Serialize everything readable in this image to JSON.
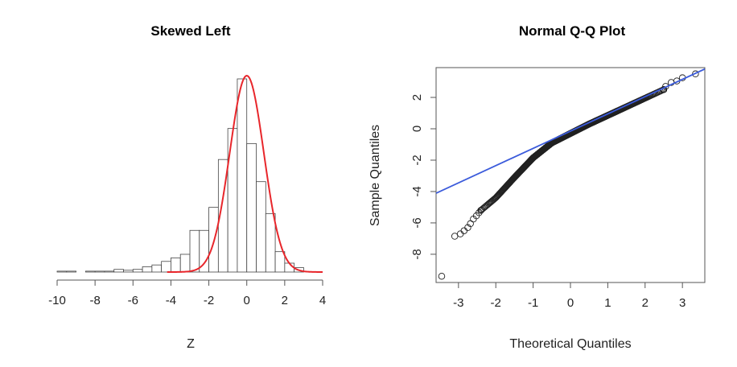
{
  "chart_data": [
    {
      "type": "histogram",
      "title": "Skewed Left",
      "xlabel": "Z",
      "ylabel": "",
      "xlim": [
        -10,
        4
      ],
      "x_ticks": [
        -10,
        -8,
        -6,
        -4,
        -2,
        0,
        2,
        4
      ],
      "bin_width": 0.5,
      "bins": [
        {
          "x0": -10.0,
          "x1": -9.5,
          "count": 1
        },
        {
          "x0": -9.5,
          "x1": -9.0,
          "count": 1
        },
        {
          "x0": -9.0,
          "x1": -8.5,
          "count": 0
        },
        {
          "x0": -8.5,
          "x1": -8.0,
          "count": 1
        },
        {
          "x0": -8.0,
          "x1": -7.5,
          "count": 1
        },
        {
          "x0": -7.5,
          "x1": -7.0,
          "count": 1
        },
        {
          "x0": -7.0,
          "x1": -6.5,
          "count": 3
        },
        {
          "x0": -6.5,
          "x1": -6.0,
          "count": 2
        },
        {
          "x0": -6.0,
          "x1": -5.5,
          "count": 3
        },
        {
          "x0": -5.5,
          "x1": -5.0,
          "count": 6
        },
        {
          "x0": -5.0,
          "x1": -4.5,
          "count": 8
        },
        {
          "x0": -4.5,
          "x1": -4.0,
          "count": 12
        },
        {
          "x0": -4.0,
          "x1": -3.5,
          "count": 16
        },
        {
          "x0": -3.5,
          "x1": -3.0,
          "count": 20
        },
        {
          "x0": -3.0,
          "x1": -2.5,
          "count": 47
        },
        {
          "x0": -2.5,
          "x1": -2.0,
          "count": 47
        },
        {
          "x0": -2.0,
          "x1": -1.5,
          "count": 73
        },
        {
          "x0": -1.5,
          "x1": -1.0,
          "count": 127
        },
        {
          "x0": -1.0,
          "x1": -0.5,
          "count": 162
        },
        {
          "x0": -0.5,
          "x1": 0.0,
          "count": 218
        },
        {
          "x0": 0.0,
          "x1": 0.5,
          "count": 145
        },
        {
          "x0": 0.5,
          "x1": 1.0,
          "count": 102
        },
        {
          "x0": 1.0,
          "x1": 1.5,
          "count": 66
        },
        {
          "x0": 1.5,
          "x1": 2.0,
          "count": 23
        },
        {
          "x0": 2.0,
          "x1": 2.5,
          "count": 10
        },
        {
          "x0": 2.5,
          "x1": 3.0,
          "count": 5
        }
      ],
      "count_max": 218,
      "overlay_curve": {
        "type": "normal_density",
        "mean": 0,
        "sd": 0.9,
        "color": "#e8262b"
      },
      "bar_fill": "#ffffff",
      "bar_stroke": "#444444"
    },
    {
      "type": "scatter",
      "title": "Normal Q-Q Plot",
      "xlabel": "Theoretical Quantiles",
      "ylabel": "Sample Quantiles",
      "xlim": [
        -3.6,
        3.6
      ],
      "ylim": [
        -9.8,
        3.9
      ],
      "x_ticks": [
        -3,
        -2,
        -1,
        0,
        1,
        2,
        3
      ],
      "y_ticks": [
        -8,
        -6,
        -4,
        -2,
        0,
        2
      ],
      "points": [
        [
          -3.45,
          -9.4
        ],
        [
          -3.1,
          -6.85
        ],
        [
          -2.95,
          -6.7
        ],
        [
          -2.85,
          -6.5
        ],
        [
          -2.75,
          -6.3
        ],
        [
          -2.68,
          -6.05
        ],
        [
          -2.6,
          -5.75
        ],
        [
          -2.52,
          -5.55
        ],
        [
          -2.45,
          -5.35
        ],
        [
          2.55,
          2.7
        ],
        [
          2.7,
          2.95
        ],
        [
          2.85,
          3.05
        ],
        [
          3.0,
          3.25
        ],
        [
          3.35,
          3.5
        ]
      ],
      "dense_band": {
        "x_from": -2.4,
        "x_to": 2.5,
        "count": 980,
        "knots": [
          [
            -2.4,
            -5.2
          ],
          [
            -2.0,
            -4.4
          ],
          [
            -1.5,
            -3.1
          ],
          [
            -1.0,
            -1.85
          ],
          [
            -0.5,
            -0.9
          ],
          [
            0.0,
            -0.3
          ],
          [
            0.5,
            0.3
          ],
          [
            1.0,
            0.85
          ],
          [
            1.5,
            1.4
          ],
          [
            2.0,
            1.95
          ],
          [
            2.5,
            2.5
          ]
        ]
      },
      "reference_line": {
        "intercept": -0.15,
        "slope": 1.1,
        "color": "#3b5bdb"
      },
      "point_color": "#222222"
    }
  ]
}
